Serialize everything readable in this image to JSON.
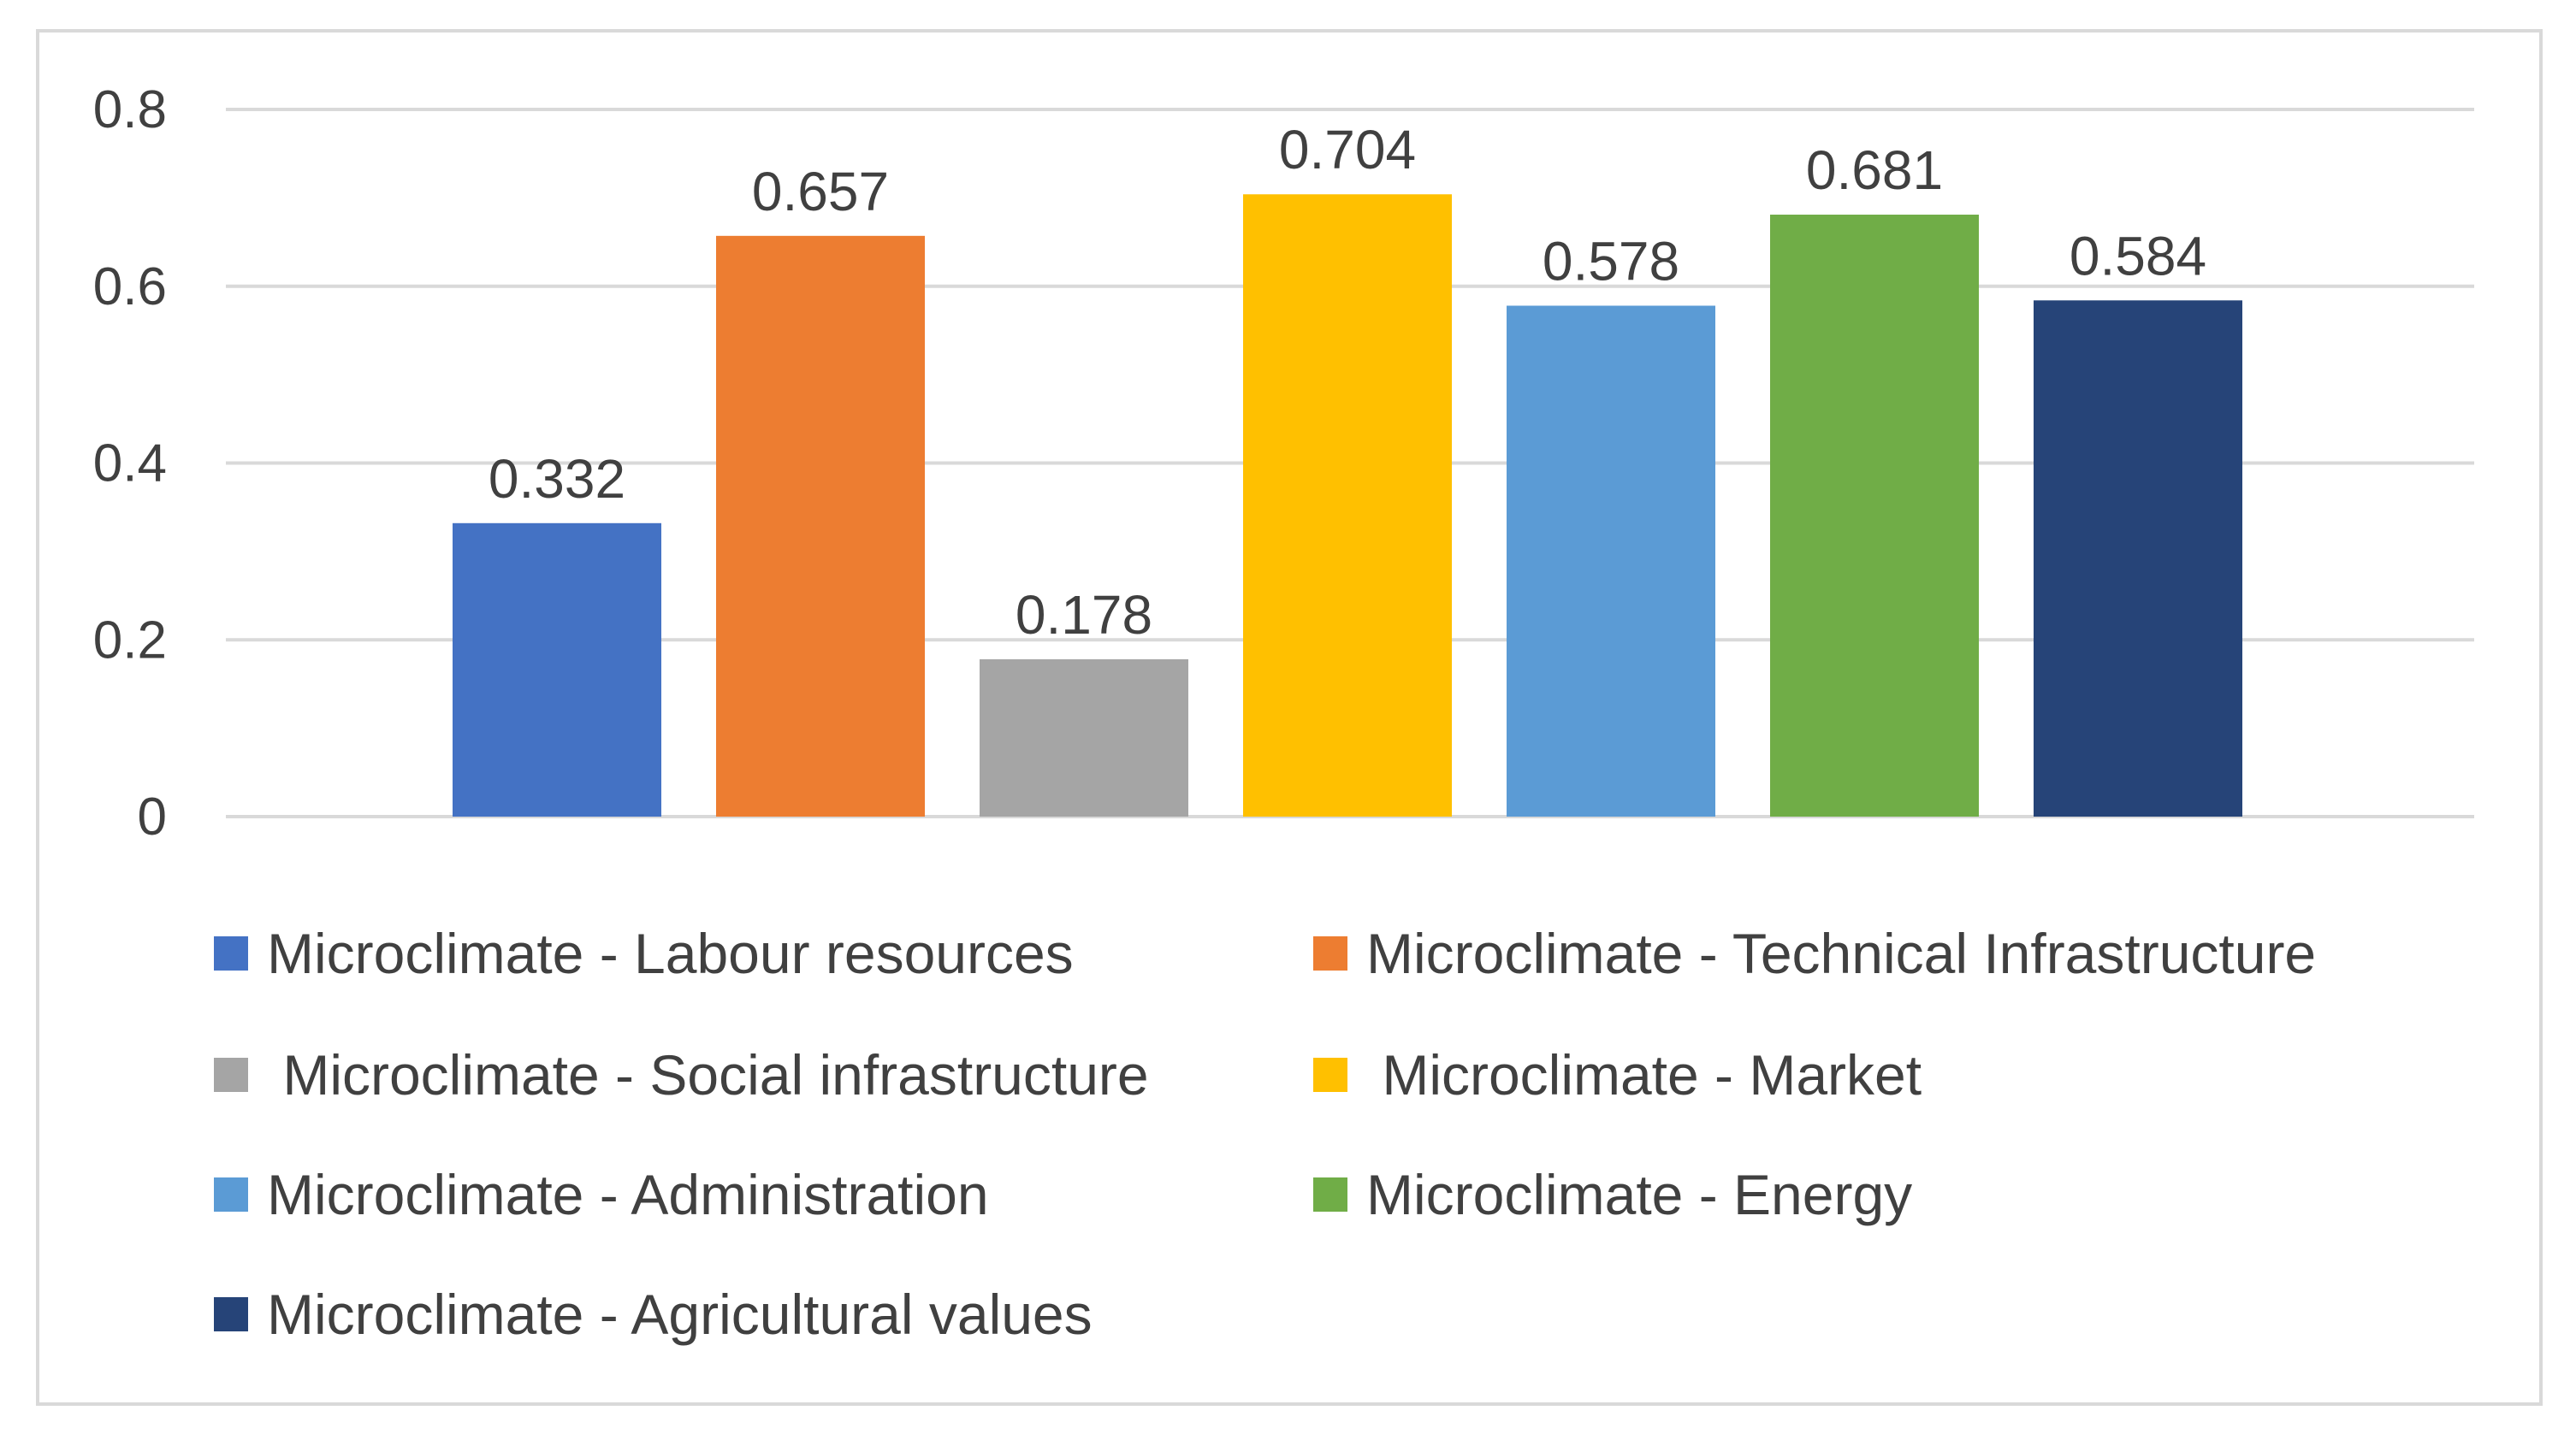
{
  "chart_data": {
    "type": "bar",
    "title": "",
    "xlabel": "",
    "ylabel": "",
    "ylim": [
      0,
      0.8
    ],
    "yticks": [
      "0",
      "0.2",
      "0.4",
      "0.6",
      "0.8"
    ],
    "ytick_values": [
      0,
      0.2,
      0.4,
      0.6,
      0.8
    ],
    "grid": true,
    "legend_position": "bottom",
    "series": [
      {
        "name": "Microclimate - Labour resources",
        "value": 0.332,
        "label": "0.332",
        "color": "#4472C4"
      },
      {
        "name": "Microclimate - Technical Infrastructure",
        "value": 0.657,
        "label": "0.657",
        "color": "#ED7D31"
      },
      {
        "name": " Microclimate - Social infrastructure",
        "value": 0.178,
        "label": "0.178",
        "color": "#A5A5A5"
      },
      {
        "name": " Microclimate - Market",
        "value": 0.704,
        "label": "0.704",
        "color": "#FFC000"
      },
      {
        "name": "Microclimate - Administration",
        "value": 0.578,
        "label": "0.578",
        "color": "#5B9BD5"
      },
      {
        "name": "Microclimate - Energy",
        "value": 0.681,
        "label": "0.681",
        "color": "#70AD47"
      },
      {
        "name": "Microclimate - Agricultural values",
        "value": 0.584,
        "label": "0.584",
        "color": "#264478"
      }
    ],
    "gridline_color": "#d9d9d9",
    "text_color": "#404040"
  }
}
